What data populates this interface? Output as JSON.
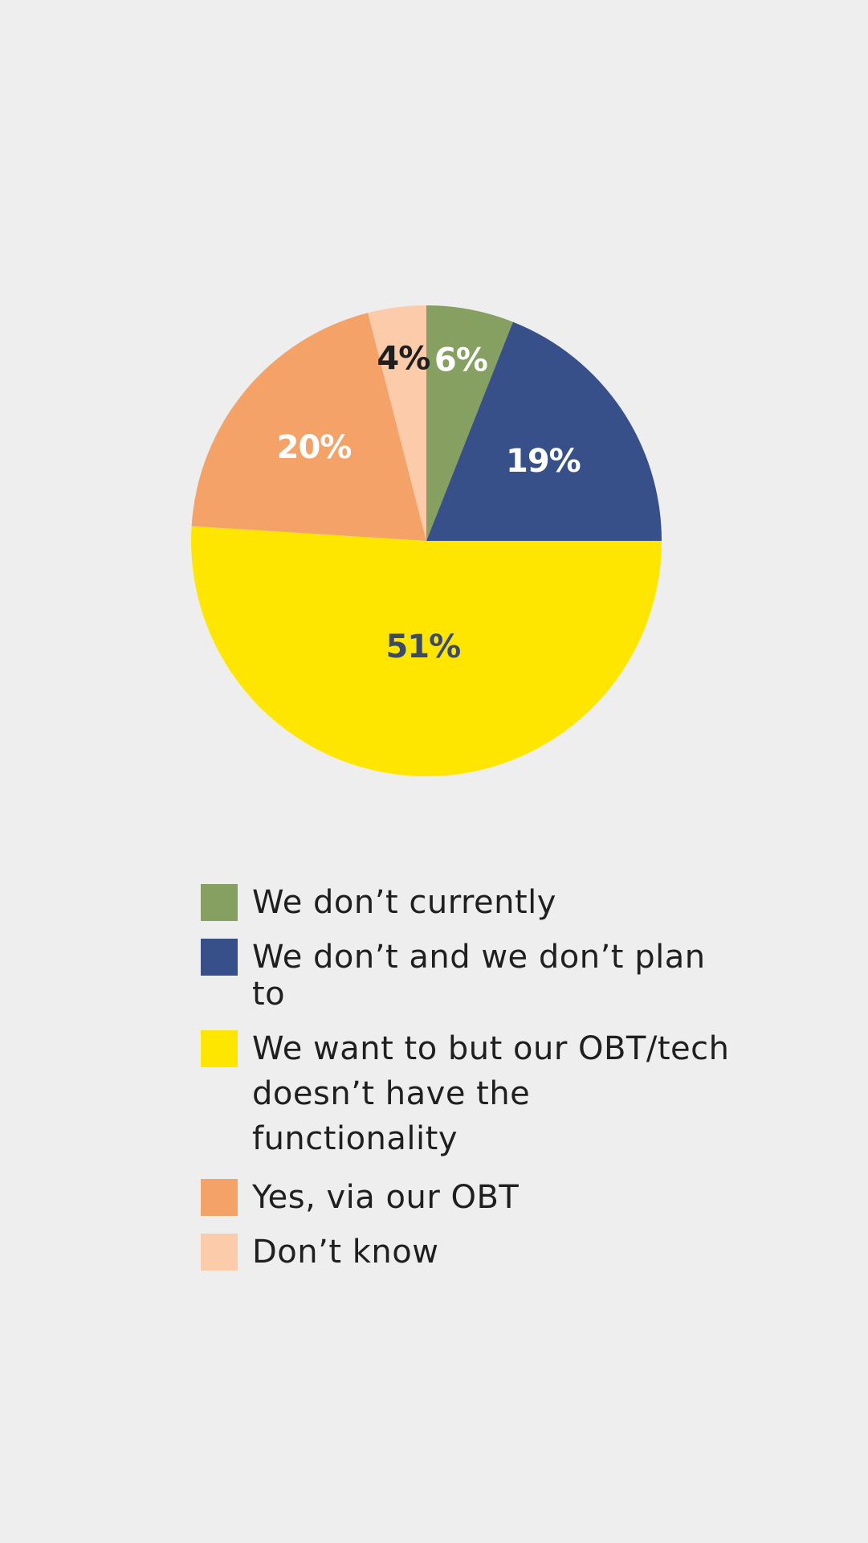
{
  "chart_data": {
    "type": "pie",
    "start": "top",
    "direction": "clockwise",
    "slices": [
      {
        "name": "We don’t currently",
        "value": 6,
        "label": "6%",
        "color": "#86a062",
        "label_color": "#ffffff"
      },
      {
        "name": "We don’t and we don’t plan to",
        "value": 19,
        "label": "19%",
        "color": "#37508a",
        "label_color": "#ffffff"
      },
      {
        "name": "We want to but our OBT/tech doesn’t have the functionality",
        "value": 51,
        "label": "51%",
        "color": "#ffe600",
        "label_color": "#3b4a6b"
      },
      {
        "name": "Yes, via our OBT",
        "value": 20,
        "label": "20%",
        "color": "#f5a268",
        "label_color": "#ffffff"
      },
      {
        "name": "Don’t know",
        "value": 4,
        "label": "4%",
        "color": "#fccbaa",
        "label_color": "#1f1f1f"
      }
    ],
    "legend_placement": "bottom"
  },
  "legend": {
    "items": [
      {
        "label": "We don’t currently",
        "color": "#86a062"
      },
      {
        "label": "We don’t and we don’t plan to",
        "color": "#37508a"
      },
      {
        "label": "We want to but our OBT/tech doesn’t have the functionality",
        "color": "#ffe600"
      },
      {
        "label": "Yes, via our OBT",
        "color": "#f5a268"
      },
      {
        "label": "Don’t know",
        "color": "#fccbaa"
      }
    ]
  }
}
